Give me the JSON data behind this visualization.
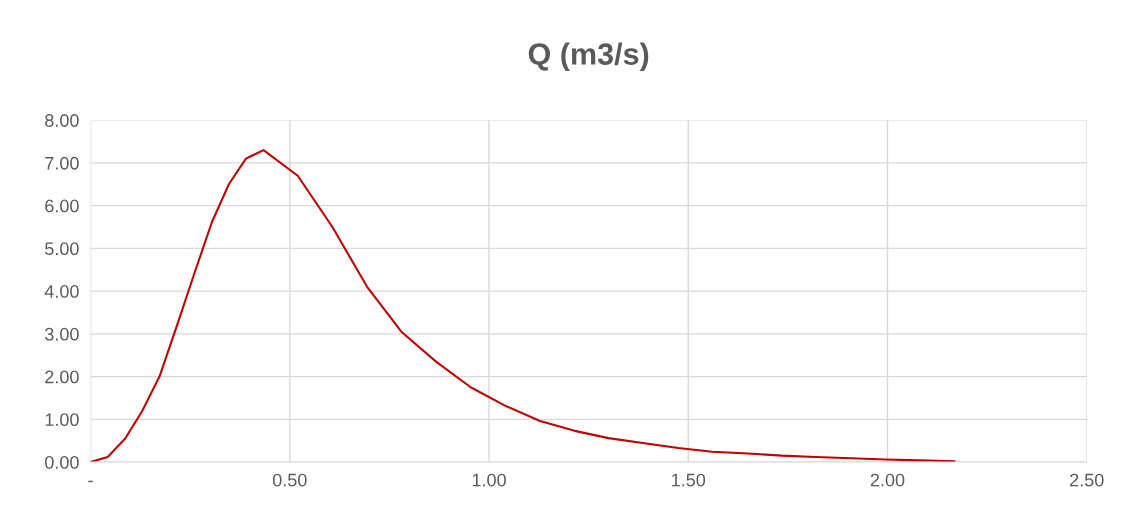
{
  "chart_data": {
    "type": "line",
    "title": "Q (m3/s)",
    "series": [
      {
        "color": "#c00000",
        "x": [
          0,
          0.043,
          0.087,
          0.13,
          0.173,
          0.217,
          0.26,
          0.304,
          0.347,
          0.39,
          0.434,
          0.52,
          0.607,
          0.694,
          0.78,
          0.867,
          0.954,
          1.04,
          1.128,
          1.215,
          1.3,
          1.39,
          1.475,
          1.56,
          1.65,
          1.735,
          1.82,
          1.908,
          1.995,
          2.08,
          2.168
        ],
        "values": [
          0,
          0.12,
          0.55,
          1.2,
          2.0,
          3.2,
          4.4,
          5.6,
          6.5,
          7.1,
          7.3,
          6.7,
          5.5,
          4.1,
          3.05,
          2.35,
          1.75,
          1.32,
          0.96,
          0.73,
          0.56,
          0.44,
          0.33,
          0.24,
          0.2,
          0.15,
          0.12,
          0.09,
          0.06,
          0.04,
          0.02
        ]
      }
    ],
    "xlim": [
      0,
      2.5
    ],
    "xticks": [
      {
        "value": 0,
        "label": "-"
      },
      {
        "value": 0.5,
        "label": "0.50"
      },
      {
        "value": 1,
        "label": "1.00"
      },
      {
        "value": 1.5,
        "label": "1.50"
      },
      {
        "value": 2,
        "label": "2.00"
      },
      {
        "value": 2.5,
        "label": "2.50"
      }
    ],
    "ylim": [
      0,
      8
    ],
    "yticks": [
      {
        "value": 0,
        "label": "0.00"
      },
      {
        "value": 1,
        "label": "1.00"
      },
      {
        "value": 2,
        "label": "2.00"
      },
      {
        "value": 3,
        "label": "3.00"
      },
      {
        "value": 4,
        "label": "4.00"
      },
      {
        "value": 5,
        "label": "5.00"
      },
      {
        "value": 6,
        "label": "6.00"
      },
      {
        "value": 7,
        "label": "7.00"
      },
      {
        "value": 8,
        "label": "8.00"
      }
    ],
    "grid": true,
    "marker": "none",
    "line_style": "solid",
    "legend": false
  }
}
